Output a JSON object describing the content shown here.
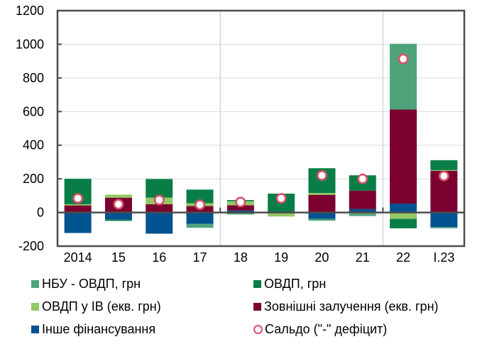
{
  "chart_data": {
    "type": "bar",
    "stacked": true,
    "title": "",
    "xlabel": "",
    "ylabel": "",
    "ylim": [
      -200,
      1200
    ],
    "yticks": [
      -200,
      0,
      200,
      400,
      600,
      800,
      1000,
      1200
    ],
    "grid": true,
    "categories": [
      "2014",
      "15",
      "16",
      "17",
      "18",
      "19",
      "20",
      "21",
      "22",
      "I.23"
    ],
    "separators_after": [
      "17",
      "21"
    ],
    "series": [
      {
        "key": "other",
        "name": "Інше фінансування",
        "color": "#005291",
        "values": [
          -122,
          -43,
          -126,
          -67,
          12,
          0,
          -38,
          21,
          53,
          -87
        ]
      },
      {
        "key": "external",
        "name": "Зовнішні залучення (екв. грн)",
        "color": "#7b0030",
        "values": [
          42,
          88,
          49,
          38,
          31,
          0,
          105,
          109,
          559,
          248
        ]
      },
      {
        "key": "ovdp_fx",
        "name": "ОВДП у ІВ (екв. грн)",
        "color": "#92c964",
        "values": [
          7,
          18,
          39,
          17,
          24,
          -24,
          11,
          -7,
          -38,
          4
        ]
      },
      {
        "key": "ovdp_uah",
        "name": "ОВДП, грн",
        "color": "#087e46",
        "values": [
          151,
          -7,
          111,
          81,
          7,
          112,
          147,
          91,
          -56,
          59
        ]
      },
      {
        "key": "nbu_ovdp",
        "name": "НБУ - ОВДП, грн",
        "color": "#4fa37a",
        "values": [
          0,
          0,
          0,
          -24,
          -12,
          0,
          -11,
          -14,
          391,
          -7
        ]
      }
    ],
    "balance": {
      "name": "Сальдо (\"-\" дефіцит)",
      "color": "#d9506a",
      "values": [
        84,
        49,
        74,
        46,
        62,
        84,
        220,
        200,
        913,
        217
      ]
    },
    "legend_position": "bottom"
  },
  "legend": {
    "items": [
      {
        "label": "НБУ - ОВДП, грн",
        "color": "#4fa37a"
      },
      {
        "label": "ОВДП, грн",
        "color": "#087e46"
      },
      {
        "label": "ОВДП у ІВ (екв. грн)",
        "color": "#92c964"
      },
      {
        "label": "Зовнішні залучення (екв. грн)",
        "color": "#7b0030"
      },
      {
        "label": "Інше фінансування",
        "color": "#005291"
      },
      {
        "label": "Сальдо (\"-\" дефіцит)",
        "color": "#d9506a"
      }
    ]
  }
}
